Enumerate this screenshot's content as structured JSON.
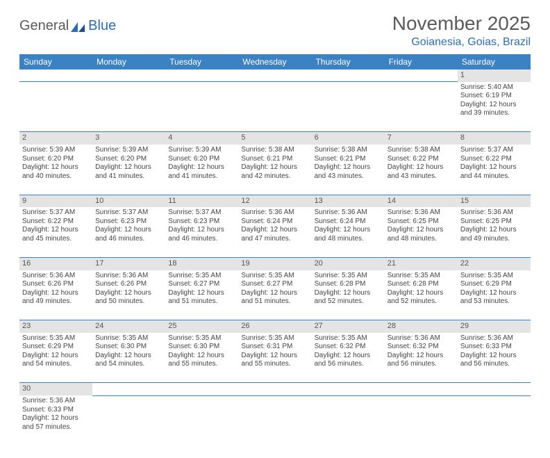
{
  "logo": {
    "part1": "General",
    "part2": "Blue"
  },
  "title": "November 2025",
  "subtitle": "Goianesia, Goias, Brazil",
  "colors": {
    "header_bg": "#3b82c4",
    "header_text": "#ffffff",
    "daynum_bg": "#e4e4e4",
    "rule": "#3b82c4",
    "title_color": "#5a5a5a",
    "subtitle_color": "#2a6db8",
    "body_text": "#444444",
    "page_bg": "#ffffff"
  },
  "typography": {
    "title_fontsize": 28,
    "subtitle_fontsize": 16,
    "header_fontsize": 12,
    "daynum_fontsize": 11,
    "cell_fontsize": 10
  },
  "day_headers": [
    "Sunday",
    "Monday",
    "Tuesday",
    "Wednesday",
    "Thursday",
    "Friday",
    "Saturday"
  ],
  "weeks": [
    [
      null,
      null,
      null,
      null,
      null,
      null,
      {
        "n": "1",
        "sunrise": "5:40 AM",
        "sunset": "6:19 PM",
        "daylight": "12 hours and 39 minutes."
      }
    ],
    [
      {
        "n": "2",
        "sunrise": "5:39 AM",
        "sunset": "6:20 PM",
        "daylight": "12 hours and 40 minutes."
      },
      {
        "n": "3",
        "sunrise": "5:39 AM",
        "sunset": "6:20 PM",
        "daylight": "12 hours and 41 minutes."
      },
      {
        "n": "4",
        "sunrise": "5:39 AM",
        "sunset": "6:20 PM",
        "daylight": "12 hours and 41 minutes."
      },
      {
        "n": "5",
        "sunrise": "5:38 AM",
        "sunset": "6:21 PM",
        "daylight": "12 hours and 42 minutes."
      },
      {
        "n": "6",
        "sunrise": "5:38 AM",
        "sunset": "6:21 PM",
        "daylight": "12 hours and 43 minutes."
      },
      {
        "n": "7",
        "sunrise": "5:38 AM",
        "sunset": "6:22 PM",
        "daylight": "12 hours and 43 minutes."
      },
      {
        "n": "8",
        "sunrise": "5:37 AM",
        "sunset": "6:22 PM",
        "daylight": "12 hours and 44 minutes."
      }
    ],
    [
      {
        "n": "9",
        "sunrise": "5:37 AM",
        "sunset": "6:22 PM",
        "daylight": "12 hours and 45 minutes."
      },
      {
        "n": "10",
        "sunrise": "5:37 AM",
        "sunset": "6:23 PM",
        "daylight": "12 hours and 46 minutes."
      },
      {
        "n": "11",
        "sunrise": "5:37 AM",
        "sunset": "6:23 PM",
        "daylight": "12 hours and 46 minutes."
      },
      {
        "n": "12",
        "sunrise": "5:36 AM",
        "sunset": "6:24 PM",
        "daylight": "12 hours and 47 minutes."
      },
      {
        "n": "13",
        "sunrise": "5:36 AM",
        "sunset": "6:24 PM",
        "daylight": "12 hours and 48 minutes."
      },
      {
        "n": "14",
        "sunrise": "5:36 AM",
        "sunset": "6:25 PM",
        "daylight": "12 hours and 48 minutes."
      },
      {
        "n": "15",
        "sunrise": "5:36 AM",
        "sunset": "6:25 PM",
        "daylight": "12 hours and 49 minutes."
      }
    ],
    [
      {
        "n": "16",
        "sunrise": "5:36 AM",
        "sunset": "6:26 PM",
        "daylight": "12 hours and 49 minutes."
      },
      {
        "n": "17",
        "sunrise": "5:36 AM",
        "sunset": "6:26 PM",
        "daylight": "12 hours and 50 minutes."
      },
      {
        "n": "18",
        "sunrise": "5:35 AM",
        "sunset": "6:27 PM",
        "daylight": "12 hours and 51 minutes."
      },
      {
        "n": "19",
        "sunrise": "5:35 AM",
        "sunset": "6:27 PM",
        "daylight": "12 hours and 51 minutes."
      },
      {
        "n": "20",
        "sunrise": "5:35 AM",
        "sunset": "6:28 PM",
        "daylight": "12 hours and 52 minutes."
      },
      {
        "n": "21",
        "sunrise": "5:35 AM",
        "sunset": "6:28 PM",
        "daylight": "12 hours and 52 minutes."
      },
      {
        "n": "22",
        "sunrise": "5:35 AM",
        "sunset": "6:29 PM",
        "daylight": "12 hours and 53 minutes."
      }
    ],
    [
      {
        "n": "23",
        "sunrise": "5:35 AM",
        "sunset": "6:29 PM",
        "daylight": "12 hours and 54 minutes."
      },
      {
        "n": "24",
        "sunrise": "5:35 AM",
        "sunset": "6:30 PM",
        "daylight": "12 hours and 54 minutes."
      },
      {
        "n": "25",
        "sunrise": "5:35 AM",
        "sunset": "6:30 PM",
        "daylight": "12 hours and 55 minutes."
      },
      {
        "n": "26",
        "sunrise": "5:35 AM",
        "sunset": "6:31 PM",
        "daylight": "12 hours and 55 minutes."
      },
      {
        "n": "27",
        "sunrise": "5:35 AM",
        "sunset": "6:32 PM",
        "daylight": "12 hours and 56 minutes."
      },
      {
        "n": "28",
        "sunrise": "5:36 AM",
        "sunset": "6:32 PM",
        "daylight": "12 hours and 56 minutes."
      },
      {
        "n": "29",
        "sunrise": "5:36 AM",
        "sunset": "6:33 PM",
        "daylight": "12 hours and 56 minutes."
      }
    ],
    [
      {
        "n": "30",
        "sunrise": "5:36 AM",
        "sunset": "6:33 PM",
        "daylight": "12 hours and 57 minutes."
      },
      null,
      null,
      null,
      null,
      null,
      null
    ]
  ],
  "labels": {
    "sunrise": "Sunrise:",
    "sunset": "Sunset:",
    "daylight": "Daylight:"
  }
}
